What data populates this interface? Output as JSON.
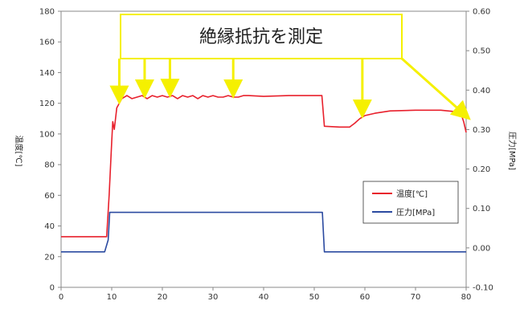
{
  "chart_data": {
    "type": "line",
    "title": "",
    "xlabel": "",
    "ylabel": "温度[℃]",
    "y2label": "圧力[MPa]",
    "xlim": [
      0,
      80
    ],
    "ylim": [
      0,
      180
    ],
    "y2lim": [
      -0.1,
      0.6
    ],
    "x_ticks": [
      "0",
      "10",
      "20",
      "30",
      "40",
      "50",
      "60",
      "70",
      "80"
    ],
    "y_ticks": [
      "0",
      "20",
      "40",
      "60",
      "80",
      "100",
      "120",
      "140",
      "160",
      "180"
    ],
    "y2_ticks": [
      "-0.10",
      "0.00",
      "0.10",
      "0.20",
      "0.30",
      "0.40",
      "0.50",
      "0.60"
    ],
    "grid": false,
    "legend_position": "lower-right",
    "annotation": {
      "text": "絶縁抵抗を測定",
      "arrow_x": [
        11.5,
        16.5,
        21.5,
        34,
        59.5,
        79.5
      ]
    },
    "series": [
      {
        "name": "温度[℃]",
        "axis": "left",
        "color": "#e8202c",
        "x": [
          0,
          9,
          9.5,
          10,
          10.2,
          10.5,
          11,
          11.5,
          12,
          13,
          14,
          15,
          16,
          17,
          18,
          19,
          20,
          21,
          22,
          23,
          24,
          25,
          26,
          27,
          28,
          29,
          30,
          31,
          32,
          33,
          34,
          35,
          36,
          37,
          40,
          45,
          50,
          51.5,
          52,
          55,
          57,
          58,
          59,
          60,
          62,
          65,
          70,
          75,
          78,
          79,
          79.5,
          80
        ],
        "y": [
          33,
          33,
          60,
          95,
          108,
          103,
          117,
          120,
          123,
          125,
          123,
          124,
          125,
          123,
          125,
          124,
          125,
          124,
          125,
          123,
          125,
          124,
          125,
          123,
          125,
          124,
          125,
          124,
          124,
          125,
          124,
          124,
          125,
          125,
          124.5,
          125,
          125,
          125,
          105,
          104.5,
          104.5,
          107,
          110,
          112,
          113.5,
          115,
          115.5,
          115.5,
          114.5,
          113,
          108,
          101
        ]
      },
      {
        "name": "圧力[MPa]",
        "axis": "right",
        "color": "#2b4aa0",
        "x": [
          0,
          8.6,
          9.3,
          9.6,
          51.6,
          52.0,
          80
        ],
        "y": [
          -0.01,
          -0.01,
          0.02,
          0.09,
          0.09,
          -0.01,
          -0.01
        ]
      }
    ]
  }
}
